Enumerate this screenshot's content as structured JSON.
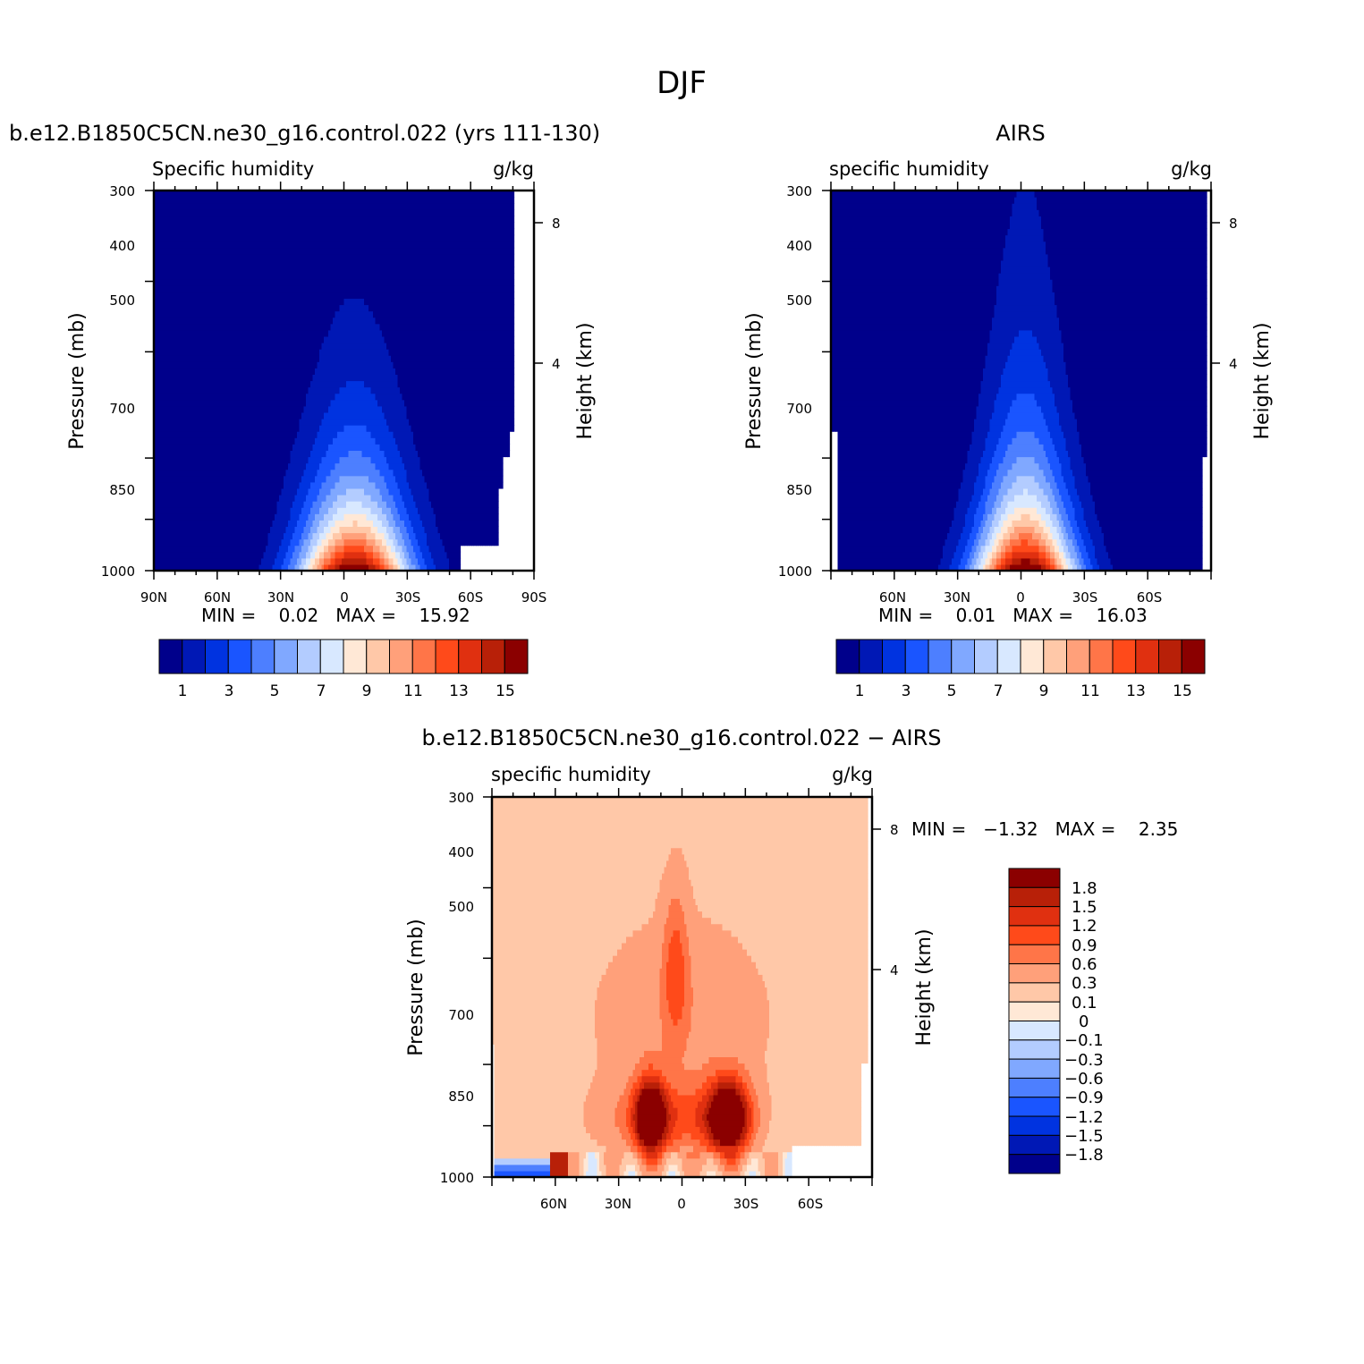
{
  "figure": {
    "title": "DJF"
  },
  "chart_data": [
    {
      "type": "heatmap",
      "id": "model",
      "case_title": "b.e12.B1850C5CN.ne30_g16.control.022 (yrs 111-130)",
      "left_label": "Specific humidity",
      "right_label": "g/kg",
      "ylabel": "Pressure (mb)",
      "ylabel2": "Height (km)",
      "x_ticks": [
        "90N",
        "60N",
        "30N",
        "0",
        "30S",
        "60S",
        "90S"
      ],
      "y_ticks": [
        "300",
        "400",
        "500",
        "700",
        "850",
        "1000"
      ],
      "y_ticks2": [
        "8",
        "4"
      ],
      "ylim": [
        1000,
        300
      ],
      "stats_text": "MIN =    0.02   MAX =    15.92",
      "min": 0.02,
      "max": 15.92,
      "colorbar_labels": [
        "1",
        "3",
        "5",
        "7",
        "9",
        "11",
        "13",
        "15"
      ]
    },
    {
      "type": "heatmap",
      "id": "obs",
      "case_title": "AIRS",
      "left_label": "specific humidity",
      "right_label": "g/kg",
      "ylabel": "Pressure (mb)",
      "ylabel2": "Height (km)",
      "x_ticks": [
        "60N",
        "30N",
        "0",
        "30S",
        "60S"
      ],
      "y_ticks": [
        "300",
        "400",
        "500",
        "700",
        "850",
        "1000"
      ],
      "y_ticks2": [
        "8",
        "4"
      ],
      "ylim": [
        1000,
        300
      ],
      "stats_text": "MIN =    0.01   MAX =    16.03",
      "min": 0.01,
      "max": 16.03,
      "colorbar_labels": [
        "1",
        "3",
        "5",
        "7",
        "9",
        "11",
        "13",
        "15"
      ]
    },
    {
      "type": "heatmap",
      "id": "diff",
      "case_title": "b.e12.B1850C5CN.ne30_g16.control.022 − AIRS",
      "left_label": "specific humidity",
      "right_label": "g/kg",
      "ylabel": "Pressure (mb)",
      "ylabel2": "Height (km)",
      "x_ticks": [
        "60N",
        "30N",
        "0",
        "30S",
        "60S"
      ],
      "y_ticks": [
        "300",
        "400",
        "500",
        "700",
        "850",
        "1000"
      ],
      "y_ticks2": [
        "8",
        "4"
      ],
      "ylim": [
        1000,
        300
      ],
      "stats_text": "MIN =   −1.32   MAX =    2.35",
      "min": -1.32,
      "max": 2.35,
      "colorbar_labels": [
        "1.8",
        "1.5",
        "1.2",
        "0.9",
        "0.6",
        "0.3",
        "0.1",
        "0",
        "−0.1",
        "−0.3",
        "−0.6",
        "−0.9",
        "−1.2",
        "−1.5",
        "−1.8"
      ]
    }
  ],
  "colors": {
    "seq": [
      "#00008b",
      "#0018b5",
      "#0033e0",
      "#1a55ff",
      "#4d7fff",
      "#80a8ff",
      "#b3ccff",
      "#d8e8ff",
      "#ffe8d6",
      "#ffc8a8",
      "#ffa07a",
      "#ff7548",
      "#ff4a1a",
      "#e03010",
      "#b82008",
      "#8b0000"
    ],
    "div": [
      "#8b0000",
      "#b82008",
      "#e03010",
      "#ff4a1a",
      "#ff7548",
      "#ffa07a",
      "#ffc8a8",
      "#ffe8d6",
      "#d8e8ff",
      "#b3ccff",
      "#80a8ff",
      "#4d7fff",
      "#1a55ff",
      "#0033e0",
      "#0018b5",
      "#00008b"
    ]
  }
}
